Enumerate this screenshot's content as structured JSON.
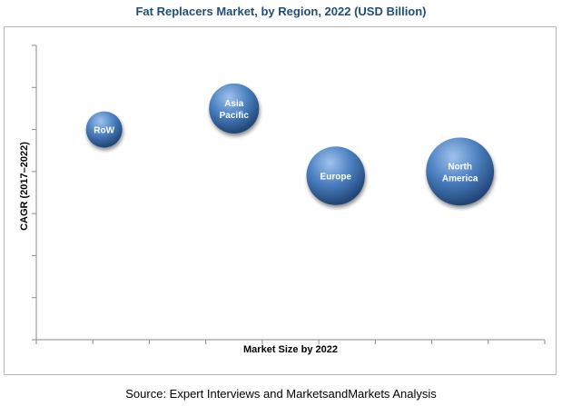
{
  "chart_data": {
    "type": "bubble",
    "title": "Fat Replacers Market, by Region, 2022 (USD Billion)",
    "xlabel": "Market Size by 2022",
    "ylabel": "CAGR (2017–2022)",
    "series": [
      {
        "name": "RoW",
        "label_lines": [
          "RoW"
        ],
        "x": 1.2,
        "y": 5.0,
        "size": 1.0
      },
      {
        "name": "Asia Pacific",
        "label_lines": [
          "Asia",
          "Pacific"
        ],
        "x": 3.5,
        "y": 5.5,
        "size": 1.9
      },
      {
        "name": "Europe",
        "label_lines": [
          "Europe"
        ],
        "x": 5.3,
        "y": 3.9,
        "size": 2.6
      },
      {
        "name": "North America",
        "label_lines": [
          "North",
          "America"
        ],
        "x": 7.5,
        "y": 4.0,
        "size": 3.5
      }
    ],
    "xlim": [
      0,
      9
    ],
    "ylim": [
      0,
      7
    ],
    "x_ticks": 9,
    "y_ticks": 7,
    "grid": false,
    "colors": {
      "bubble_light": "#9fc2ec",
      "bubble_mid": "#4a7fc0",
      "bubble_dark": "#1d3f6e"
    }
  },
  "source_text": "Source: Expert Interviews and MarketsandMarkets Analysis"
}
